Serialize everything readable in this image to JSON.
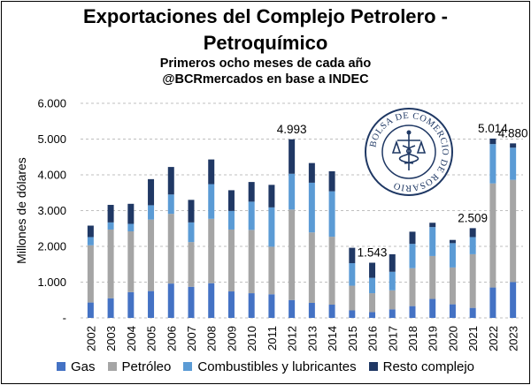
{
  "title_line1": "Exportaciones del Complejo Petrolero -",
  "title_line2": "Petroquímico",
  "subtitle_line1": "Primeros ocho meses de cada año",
  "subtitle_line2": "@BCRmercados en base a INDEC",
  "seal_text": "BOLSA DE COMERCIO DE ROSARIO",
  "chart_data": {
    "type": "bar",
    "stacked": true,
    "ylabel": "Millones de dólares",
    "ylim": [
      0,
      6000
    ],
    "yticks": [
      0,
      1000,
      2000,
      3000,
      4000,
      5000,
      6000
    ],
    "ytick_labels": [
      "-",
      "1.000",
      "2.000",
      "3.000",
      "4.000",
      "5.000",
      "6.000"
    ],
    "grid": "horizontal dashed",
    "legend_position": "bottom",
    "categories": [
      "2002",
      "2003",
      "2004",
      "2005",
      "2006",
      "2007",
      "2008",
      "2009",
      "2010",
      "2011",
      "2012",
      "2013",
      "2014",
      "2015",
      "2016",
      "2017",
      "2018",
      "2019",
      "2020",
      "2021",
      "2022",
      "2023"
    ],
    "series": [
      {
        "name": "Gas",
        "color": "#4472c4",
        "values": [
          430,
          550,
          720,
          750,
          960,
          870,
          970,
          740,
          690,
          660,
          500,
          420,
          370,
          210,
          160,
          240,
          330,
          530,
          380,
          280,
          850,
          1000
        ]
      },
      {
        "name": "Petróleo",
        "color": "#a5a5a5",
        "values": [
          1600,
          1920,
          1700,
          2000,
          1950,
          1250,
          1800,
          1730,
          1770,
          1330,
          2530,
          1970,
          1900,
          690,
          530,
          530,
          1060,
          1200,
          1030,
          1500,
          2910,
          2860
        ]
      },
      {
        "name": "Combustibles y lubricantes",
        "color": "#5b9bd5",
        "values": [
          230,
          200,
          210,
          400,
          540,
          550,
          970,
          520,
          790,
          1100,
          1000,
          1390,
          1270,
          630,
          430,
          520,
          680,
          810,
          680,
          480,
          1100,
          900
        ]
      },
      {
        "name": "Resto complejo",
        "color": "#203864",
        "values": [
          320,
          490,
          560,
          730,
          770,
          630,
          690,
          580,
          550,
          630,
          963,
          550,
          560,
          430,
          423,
          490,
          340,
          120,
          90,
          249,
          154,
          120
        ]
      }
    ],
    "data_labels": [
      {
        "category": "2012",
        "text": "4.993"
      },
      {
        "category": "2016",
        "text": "1.543"
      },
      {
        "category": "2021",
        "text": "2.509"
      },
      {
        "category": "2022",
        "text": "5.014"
      },
      {
        "category": "2023",
        "text": "4.880"
      }
    ]
  }
}
